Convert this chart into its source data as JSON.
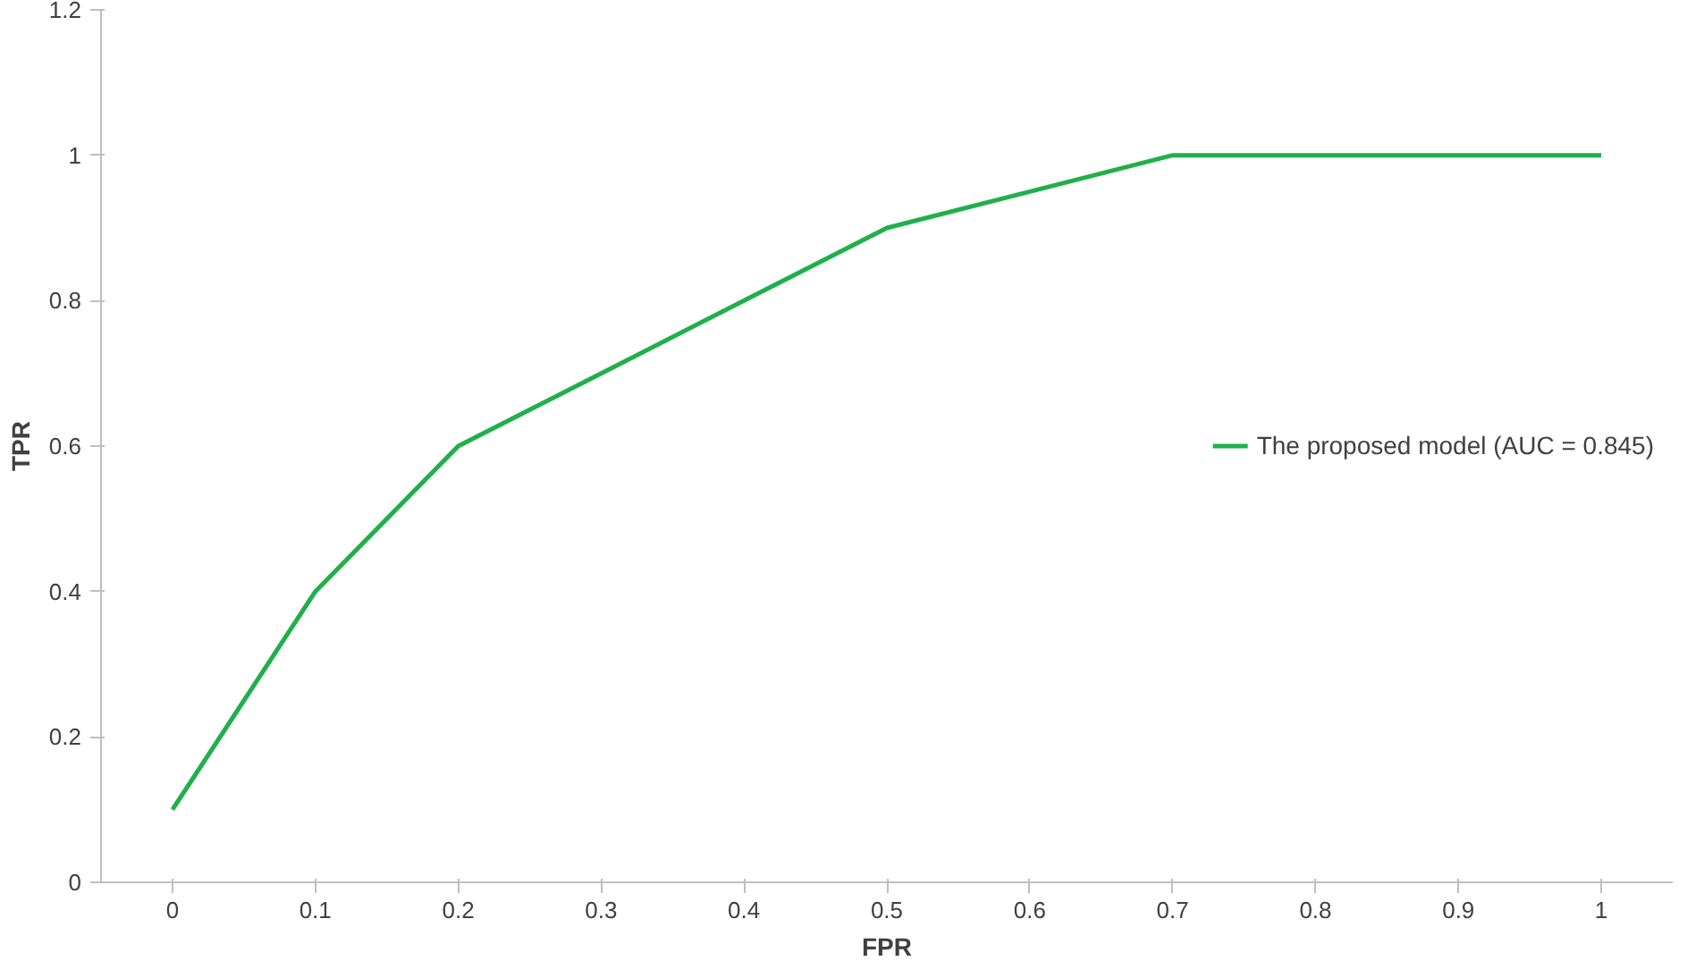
{
  "chart_data": {
    "type": "line",
    "xlabel": "FPR",
    "ylabel": "TPR",
    "categories": [
      "0",
      "0.1",
      "0.2",
      "0.3",
      "0.4",
      "0.5",
      "0.6",
      "0.7",
      "0.8",
      "0.9",
      "1"
    ],
    "series": [
      {
        "name": "The proposed model (AUC = 0.845)",
        "color": "#1fb04a",
        "values": [
          0.1,
          0.4,
          0.6,
          0.7,
          0.8,
          0.9,
          0.95,
          1.0,
          1.0,
          1.0,
          1.0
        ]
      }
    ],
    "ylim": [
      0,
      1.2
    ],
    "yticks": [
      0,
      0.2,
      0.4,
      0.6,
      0.8,
      1,
      1.2
    ],
    "grid": false,
    "legend": "right",
    "line_style": "solid"
  }
}
